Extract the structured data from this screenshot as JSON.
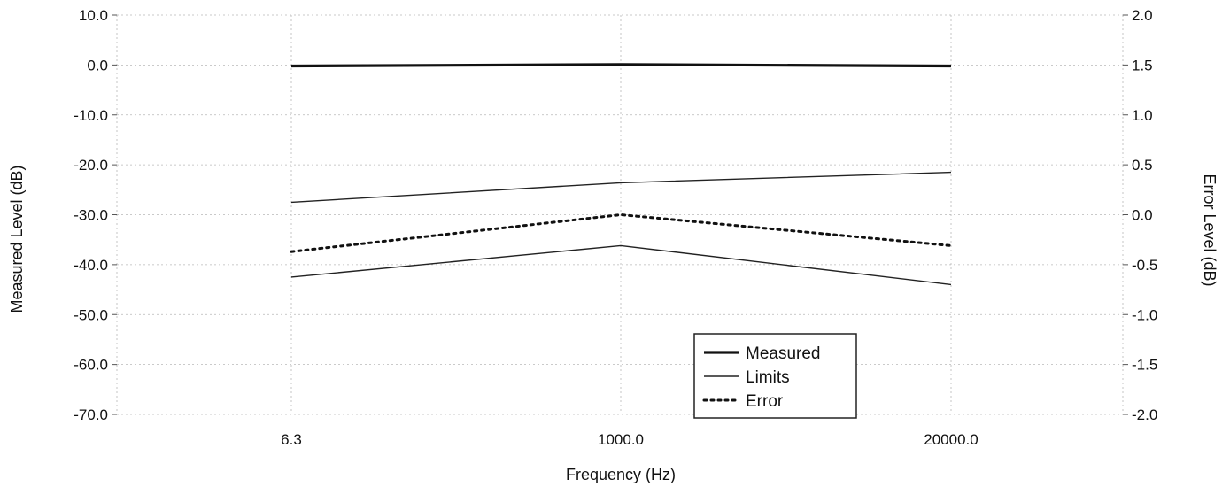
{
  "chart_data": {
    "type": "line",
    "xlabel": "Frequency (Hz)",
    "ylabel_left": "Measured Level (dB)",
    "ylabel_right": "Error Level (dB)",
    "categories": [
      "6.3",
      "1000.0",
      "20000.0"
    ],
    "x_scale": "categorical",
    "y_left": {
      "lim": [
        -70,
        10
      ],
      "ticks": [
        "10.0",
        "0.0",
        "-10.0",
        "-20.0",
        "-30.0",
        "-40.0",
        "-50.0",
        "-60.0",
        "-70.0"
      ]
    },
    "y_right": {
      "lim": [
        -2.0,
        2.0
      ],
      "ticks": [
        "2.0",
        "1.5",
        "1.0",
        "0.5",
        "0.0",
        "-0.5",
        "-1.0",
        "-1.5",
        "-2.0"
      ]
    },
    "grid": true,
    "legend_position": "bottom-center",
    "series": [
      {
        "name": "Measured",
        "axis": "left",
        "style": "thick-solid",
        "values": [
          -0.2,
          0.1,
          -0.2
        ]
      },
      {
        "name": "Limits",
        "axis": "left",
        "style": "thin-solid",
        "values": [
          -27.5,
          -23.6,
          -21.5
        ]
      },
      {
        "name": "Limits",
        "axis": "left",
        "style": "thin-solid",
        "values": [
          -42.5,
          -36.2,
          -44.0
        ],
        "in_legend": false
      },
      {
        "name": "Error",
        "axis": "right",
        "style": "dotted",
        "values": [
          -0.37,
          0.0,
          -0.31
        ]
      }
    ]
  }
}
